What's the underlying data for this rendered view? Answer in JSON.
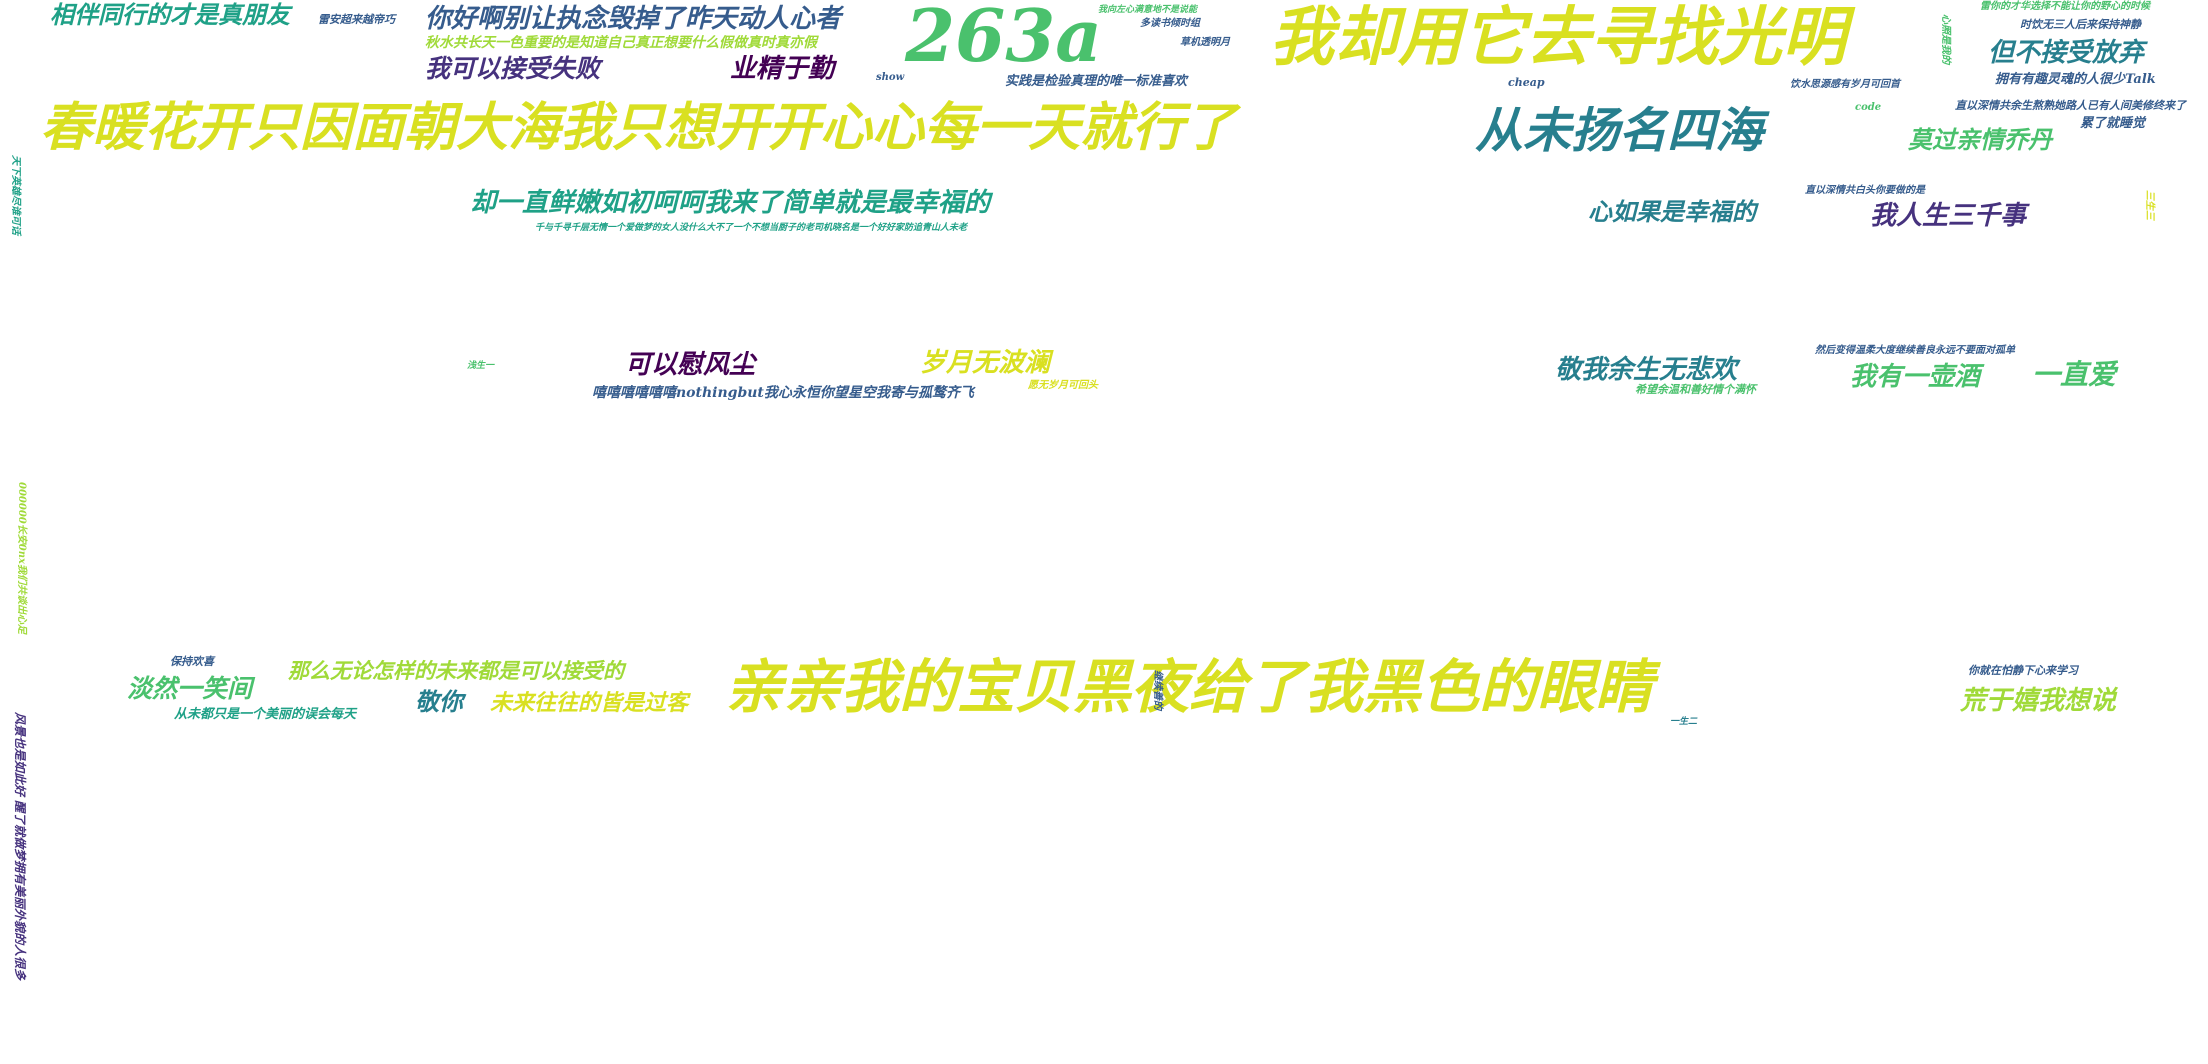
{
  "colors": {
    "yellow": "#d9e021",
    "lime": "#a0da39",
    "green": "#4ac16d",
    "teal": "#1fa187",
    "cyan": "#277f8e",
    "blue": "#365c8d",
    "indigo": "#46327e",
    "purple": "#440154"
  },
  "words": [
    "相伴同行的才是真朋友",
    "雷安超来越帝巧",
    "你好啊别让执念毁掉了昨天动人心者",
    "秋水共长天一色重要的是知道自己真正想要什么假做真时真亦假",
    "我可以接受失败",
    "业精于勤",
    "show",
    "263a",
    "我向左心满意地不是说能",
    "多读书倾时组",
    "草机透明月",
    "实践是检验真理的唯一标准喜欢",
    "我却用它去寻找光明",
    "雷你的才华选择不能让你的野心的时候",
    "时饮无三人后来保持神静",
    "但不接受放弃",
    "拥有有趣灵魂的人很少Talk",
    "饮水思源感有岁月可回首",
    "cheap",
    "心照是我的",
    "code",
    "春暖花开只因面朝大海我只想开开心心每一天就行了",
    "从未扬名四海",
    "直以深情共余生熬熟她路人已有人间美修终来了",
    "累了就睡觉",
    "莫过亲情乔丹",
    "却一直鲜嫩如初呵呵我来了简单就是最幸福的",
    "千与千寻千层无情一个爱做梦的女人没什么大不了一个不想当厨子的老司机晓名是一个好好家防追青山人未老",
    "直以深情共白头你要做的是",
    "心如果是幸福的",
    "我人生三千事",
    "三生三",
    "天下英雄尽谁可话",
    "可以慰风尘",
    "岁月无波澜",
    "浅生一",
    "嘻嘻嘻嘻嘻嘻nothingbut我心永恒你望星空我寄与孤鹜齐飞",
    "愿无岁月可回头",
    "敬我余生无悲欢",
    "然后变得温柔大度继续善良永远不要面对孤单",
    "希望余温和善好情个满怀",
    "我有一壶酒",
    "一直爱",
    "000000长安0nx我们共谈出心足",
    "保持欢喜",
    "淡然一笑间",
    "那么无论怎样的未来都是可以接受的",
    "从未都只是一个美丽的误会每天",
    "敬你",
    "未来往往的皆是过客",
    "亲亲我的宝贝黑夜给了我黑色的眼睛",
    "继续善的",
    "一生二",
    "你就在怕静下心来学习",
    "荒于嬉我想说",
    "风景也是如此好 醒了就做梦拥有美丽外貌的人很多"
  ]
}
